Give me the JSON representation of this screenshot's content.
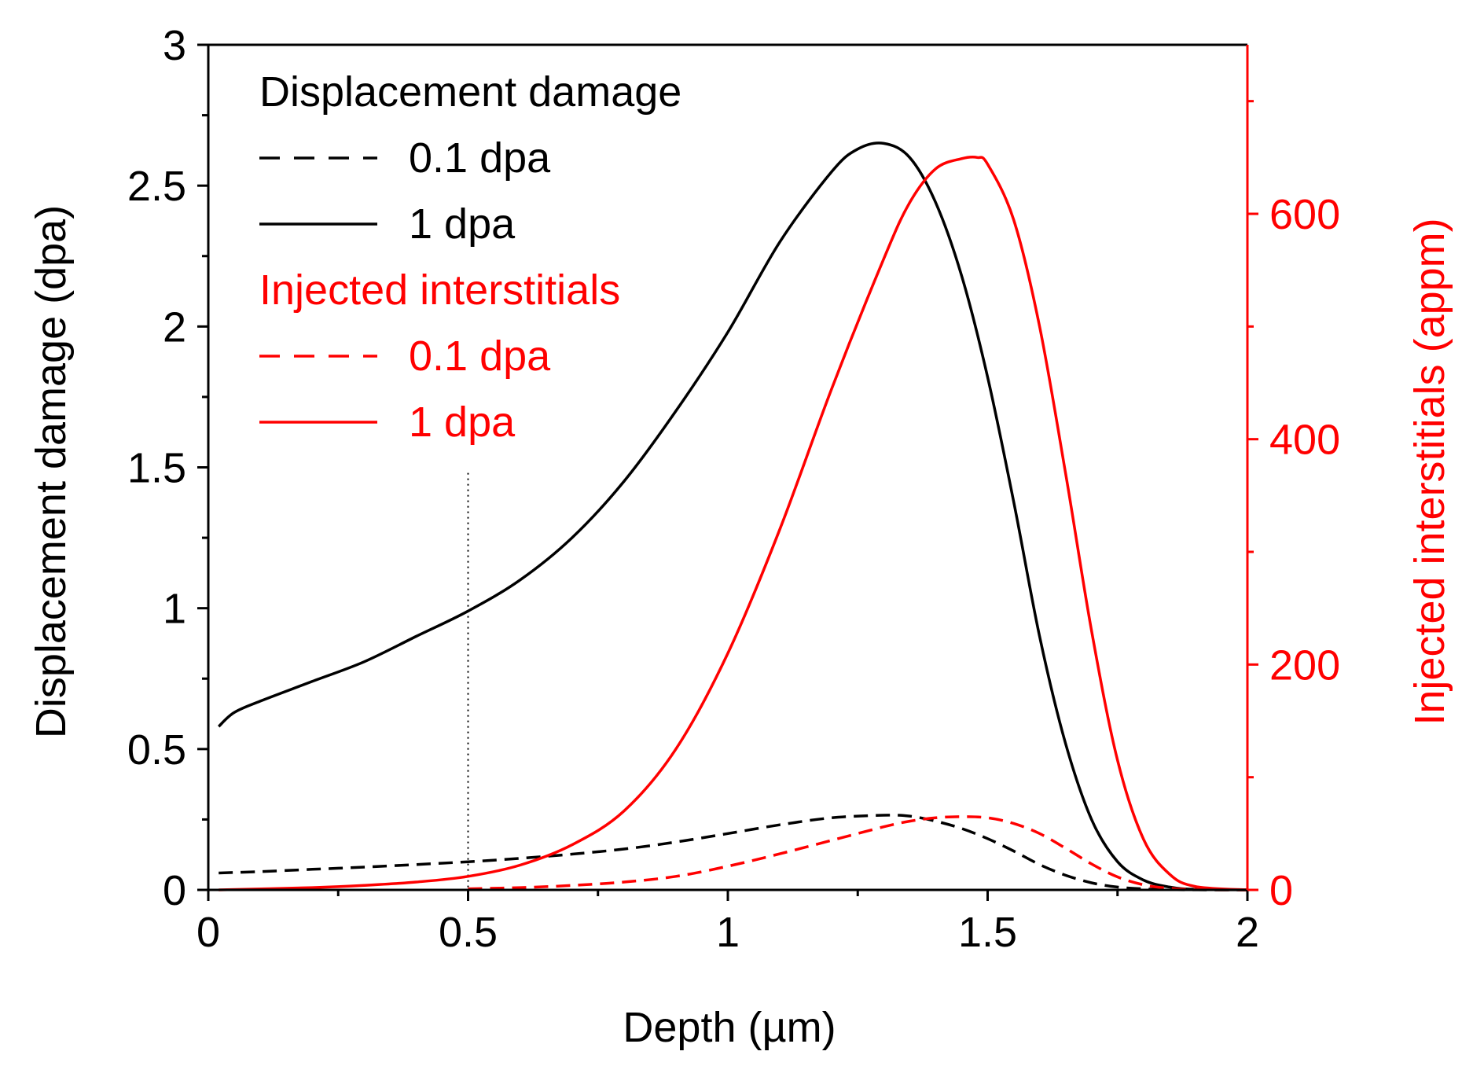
{
  "chart_data": {
    "type": "line",
    "xlabel": "Depth (µm)",
    "ylabel": "Displacement damage (dpa)",
    "y2label": "Injected interstitials (appm)",
    "xlim": [
      0,
      2
    ],
    "ylim": [
      0,
      3
    ],
    "y2lim": [
      0,
      750
    ],
    "x_ticks": [
      "0",
      "0.5",
      "1",
      "1.5",
      "2"
    ],
    "y_ticks": [
      "0",
      "0.5",
      "1",
      "1.5",
      "2",
      "2.5",
      "3"
    ],
    "y2_ticks": [
      "0",
      "200",
      "400",
      "600"
    ],
    "reference_line": {
      "x": 0.5,
      "style": "dotted",
      "y_top": 1.48
    },
    "legend": {
      "placement": "top-left",
      "groups": [
        {
          "title": "Displacement damage",
          "color": "#000000",
          "entries": [
            {
              "label": "0.1 dpa",
              "style": "dashed"
            },
            {
              "label": "1 dpa",
              "style": "solid"
            }
          ]
        },
        {
          "title": "Injected interstitials",
          "color": "#ff0000",
          "entries": [
            {
              "label": "0.1 dpa",
              "style": "dashed"
            },
            {
              "label": "1 dpa",
              "style": "solid"
            }
          ]
        }
      ]
    },
    "series": [
      {
        "name": "Displacement damage 1 dpa",
        "axis": "left",
        "style": "solid",
        "color": "#000000",
        "x": [
          0.02,
          0.05,
          0.1,
          0.2,
          0.3,
          0.4,
          0.5,
          0.6,
          0.7,
          0.8,
          0.9,
          1.0,
          1.1,
          1.2,
          1.25,
          1.3,
          1.35,
          1.4,
          1.45,
          1.5,
          1.55,
          1.6,
          1.65,
          1.7,
          1.75,
          1.8,
          1.85,
          1.9,
          2.0
        ],
        "y": [
          0.58,
          0.63,
          0.67,
          0.74,
          0.81,
          0.9,
          0.99,
          1.1,
          1.25,
          1.45,
          1.7,
          1.98,
          2.3,
          2.55,
          2.63,
          2.65,
          2.6,
          2.44,
          2.18,
          1.82,
          1.38,
          0.9,
          0.52,
          0.25,
          0.1,
          0.035,
          0.01,
          0.002,
          0.0
        ]
      },
      {
        "name": "Displacement damage 0.1 dpa",
        "axis": "left",
        "style": "dashed",
        "color": "#000000",
        "x": [
          0.02,
          0.1,
          0.2,
          0.3,
          0.4,
          0.5,
          0.6,
          0.7,
          0.8,
          0.9,
          1.0,
          1.1,
          1.2,
          1.3,
          1.35,
          1.4,
          1.45,
          1.5,
          1.55,
          1.6,
          1.65,
          1.7,
          1.75,
          1.8,
          1.85,
          1.9,
          2.0
        ],
        "y": [
          0.06,
          0.065,
          0.073,
          0.081,
          0.09,
          0.1,
          0.112,
          0.127,
          0.145,
          0.17,
          0.2,
          0.231,
          0.256,
          0.265,
          0.262,
          0.244,
          0.218,
          0.182,
          0.138,
          0.09,
          0.052,
          0.025,
          0.01,
          0.0035,
          0.001,
          0.0002,
          0.0
        ]
      },
      {
        "name": "Injected interstitials 1 dpa",
        "axis": "right",
        "style": "solid",
        "color": "#ff0000",
        "x": [
          0.02,
          0.2,
          0.3,
          0.4,
          0.5,
          0.6,
          0.7,
          0.8,
          0.9,
          1.0,
          1.1,
          1.2,
          1.3,
          1.35,
          1.4,
          1.45,
          1.48,
          1.5,
          1.55,
          1.6,
          1.65,
          1.7,
          1.75,
          1.8,
          1.85,
          1.9,
          2.0
        ],
        "y": [
          0,
          2,
          4,
          7,
          12,
          22,
          40,
          70,
          125,
          210,
          320,
          445,
          560,
          610,
          640,
          649,
          650,
          644,
          595,
          500,
          370,
          230,
          115,
          45,
          14,
          3,
          0
        ]
      },
      {
        "name": "Injected interstitials 0.1 dpa",
        "axis": "right",
        "style": "dashed",
        "color": "#ff0000",
        "x": [
          0.5,
          0.6,
          0.7,
          0.8,
          0.9,
          1.0,
          1.1,
          1.2,
          1.3,
          1.35,
          1.4,
          1.45,
          1.5,
          1.55,
          1.6,
          1.65,
          1.7,
          1.75,
          1.8,
          1.85,
          1.9,
          2.0
        ],
        "y": [
          1,
          2,
          4,
          7,
          12,
          21,
          32,
          44,
          56,
          61,
          64,
          65,
          64,
          59,
          50,
          37,
          23,
          11.5,
          4.5,
          1.4,
          0.3,
          0
        ]
      }
    ]
  }
}
